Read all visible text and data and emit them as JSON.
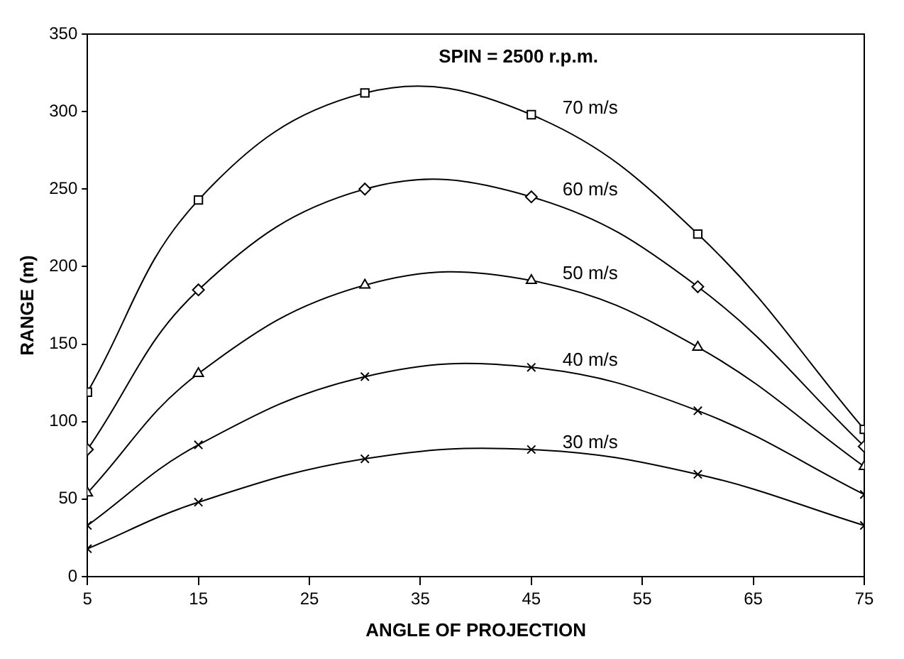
{
  "chart_data": {
    "type": "line",
    "title": "SPIN = 2500 r.p.m.",
    "xlabel": "ANGLE OF PROJECTION",
    "ylabel": "RANGE (m)",
    "x": [
      5,
      15,
      30,
      45,
      60,
      75
    ],
    "series": [
      {
        "name": "70 m/s",
        "color": "#000000",
        "marker": "square",
        "values": [
          119,
          243,
          312,
          298,
          221,
          95
        ]
      },
      {
        "name": "60 m/s",
        "color": "#000000",
        "marker": "diamond",
        "values": [
          82,
          185,
          250,
          245,
          187,
          84
        ]
      },
      {
        "name": "50 m/s",
        "color": "#000000",
        "marker": "triangle",
        "values": [
          54,
          131,
          188,
          191,
          148,
          71
        ]
      },
      {
        "name": "40 m/s",
        "color": "#000000",
        "marker": "cross",
        "values": [
          33,
          85,
          129,
          135,
          107,
          53
        ]
      },
      {
        "name": "30 m/s",
        "color": "#000000",
        "marker": "cross",
        "values": [
          18,
          48,
          76,
          82,
          66,
          33
        ]
      }
    ],
    "xlim": [
      5,
      75
    ],
    "xticks": [
      5,
      15,
      25,
      35,
      45,
      55,
      65,
      75
    ],
    "ylim": [
      0,
      350
    ],
    "yticks": [
      0,
      50,
      100,
      150,
      200,
      250,
      300,
      350
    ],
    "grid": false,
    "legend": false,
    "line_style": "solid"
  }
}
